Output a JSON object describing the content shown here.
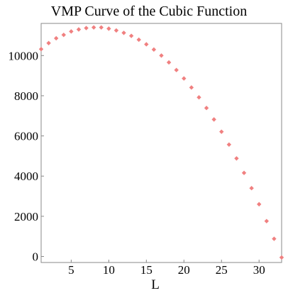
{
  "chart_data": {
    "type": "scatter",
    "title": "VMP Curve of the Cubic Function",
    "xlabel": "L",
    "ylabel": "",
    "xlim": [
      1,
      33
    ],
    "ylim": [
      -300,
      11600
    ],
    "x_ticks": [
      5,
      10,
      15,
      20,
      25,
      30
    ],
    "y_ticks": [
      0,
      2000,
      4000,
      6000,
      8000,
      10000
    ],
    "x_tick_labels": [
      "5",
      "10",
      "15",
      "20",
      "25",
      "30"
    ],
    "y_tick_labels": [
      "0",
      "2000",
      "4000",
      "6000",
      "8000",
      "10000"
    ],
    "grid": false,
    "legend": "none",
    "marker": "diamond",
    "marker_color": "#f08080",
    "series": [
      {
        "x": [
          1,
          2,
          3,
          4,
          5,
          6,
          7,
          8,
          9,
          10,
          11,
          12,
          13,
          14,
          15,
          16,
          17,
          18,
          19,
          20,
          21,
          22,
          23,
          24,
          25,
          26,
          27,
          28,
          29,
          30,
          31,
          32,
          33
        ],
        "y": [
          10320,
          10620,
          10860,
          11030,
          11200,
          11300,
          11370,
          11400,
          11400,
          11340,
          11250,
          11130,
          10980,
          10790,
          10560,
          10300,
          10000,
          9660,
          9280,
          8860,
          8410,
          7920,
          7390,
          6820,
          6210,
          5570,
          4880,
          4160,
          3400,
          2600,
          1760,
          880,
          -50
        ]
      }
    ]
  }
}
